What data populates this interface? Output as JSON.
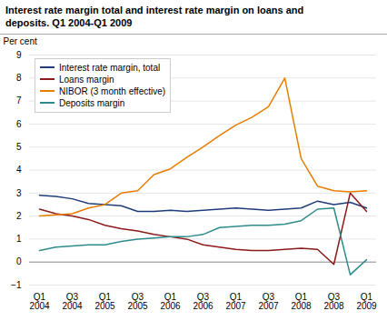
{
  "chart_data": {
    "type": "line",
    "title": "Interest rate margin total and interest rate margin on loans and\ndeposits. Q1 2004-Q1 2009",
    "ylabel": "Per cent",
    "categories": [
      "Q1\n2004",
      null,
      "Q3\n2004",
      null,
      "Q1\n2005",
      null,
      "Q3\n2005",
      null,
      "Q1\n2006",
      null,
      "Q3\n2006",
      null,
      "Q1\n2007",
      null,
      "Q3\n2007",
      null,
      "Q1\n2008",
      null,
      "Q3\n2008",
      null,
      "Q1\n2009"
    ],
    "series": [
      {
        "name": "Interest rate margin, total",
        "color": "#1f3d7a",
        "values": [
          2.9,
          2.85,
          2.75,
          2.55,
          2.5,
          2.45,
          2.2,
          2.2,
          2.25,
          2.2,
          2.25,
          2.3,
          2.35,
          2.3,
          2.25,
          2.3,
          2.35,
          2.65,
          2.5,
          2.6,
          2.35
        ]
      },
      {
        "name": "Loans margin",
        "color": "#8b1a1a",
        "values": [
          2.3,
          2.1,
          2.0,
          1.85,
          1.6,
          1.45,
          1.35,
          1.2,
          1.1,
          1.0,
          0.75,
          0.65,
          0.55,
          0.5,
          0.5,
          0.55,
          0.6,
          0.55,
          -0.1,
          3.0,
          2.2
        ]
      },
      {
        "name": "NIBOR (3 month effective)",
        "color": "#e87d00",
        "values": [
          2.0,
          2.05,
          2.1,
          2.35,
          2.5,
          3.0,
          3.1,
          3.8,
          4.05,
          4.55,
          5.0,
          5.5,
          5.95,
          6.3,
          6.75,
          8.0,
          4.5,
          3.3,
          3.1,
          3.05,
          3.1
        ]
      },
      {
        "name": "Deposits margin",
        "color": "#2e8b8b",
        "values": [
          0.5,
          0.65,
          0.7,
          0.75,
          0.75,
          0.9,
          1.0,
          1.05,
          1.1,
          1.1,
          1.2,
          1.5,
          1.55,
          1.6,
          1.6,
          1.65,
          1.8,
          2.3,
          2.35,
          -0.55,
          0.1
        ]
      }
    ],
    "ylim": [
      -1,
      9
    ],
    "yticks": [
      -1,
      0,
      1,
      2,
      3,
      4,
      5,
      6,
      7,
      8,
      9
    ],
    "grid": true,
    "legend": "upper left"
  }
}
